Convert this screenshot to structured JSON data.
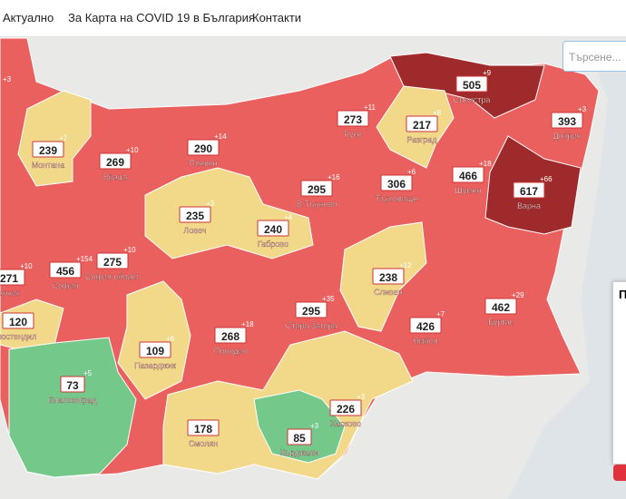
{
  "nav": [
    "Актуално",
    "За Карта на COVID 19 в България",
    "Контакти"
  ],
  "search_placeholder": "Търсене...",
  "panel_title": "П",
  "regions": [
    {
      "delta": "+3"
    },
    {
      "name": "Монтана",
      "count": 239,
      "delta": "+7"
    },
    {
      "name": "Враца",
      "count": 269,
      "delta": "+10"
    },
    {
      "name": "Плевен",
      "count": 290,
      "delta": "+14"
    },
    {
      "name": "Русе",
      "count": 273,
      "delta": "+11"
    },
    {
      "name": "Разград",
      "count": 217,
      "delta": "+8"
    },
    {
      "name": "Силистра",
      "count": 505,
      "delta": "+9"
    },
    {
      "name": "Добрич",
      "count": 393,
      "delta": "+3"
    },
    {
      "name": "Шумен",
      "count": 466,
      "delta": "+18"
    },
    {
      "name": "Варна",
      "count": 617,
      "delta": "+66"
    },
    {
      "name": "Търговище",
      "count": 306,
      "delta": "+6"
    },
    {
      "name": "В.Търново",
      "count": 295,
      "delta": "+16"
    },
    {
      "name": "Ловеч",
      "count": 235,
      "delta": "+3"
    },
    {
      "name": "Габрово",
      "count": 240,
      "delta": "+4"
    },
    {
      "name": "София",
      "count": 456,
      "delta": "+154"
    },
    {
      "name": "София област",
      "count": 275,
      "delta": "+10"
    },
    {
      "name": "ерник",
      "count": 271,
      "delta": "+10"
    },
    {
      "name": "Сливен",
      "count": 238,
      "delta": "+12"
    },
    {
      "name": "Бургас",
      "count": 462,
      "delta": "+29"
    },
    {
      "name": "Ямбол",
      "count": 426,
      "delta": "+7"
    },
    {
      "name": "Стара Загора",
      "count": 295,
      "delta": "+35"
    },
    {
      "name": "Пловдив",
      "count": 268,
      "delta": "+18"
    },
    {
      "name": "Пазарджик",
      "count": 109,
      "delta": "+6"
    },
    {
      "name": "юстендил",
      "count": 120
    },
    {
      "name": "Благоевград",
      "count": 73,
      "delta": "+5"
    },
    {
      "name": "Смолян",
      "count": 178
    },
    {
      "name": "Кърджали",
      "count": 85,
      "delta": "+3"
    },
    {
      "name": "Хасково",
      "count": 226,
      "delta": "+3"
    }
  ]
}
